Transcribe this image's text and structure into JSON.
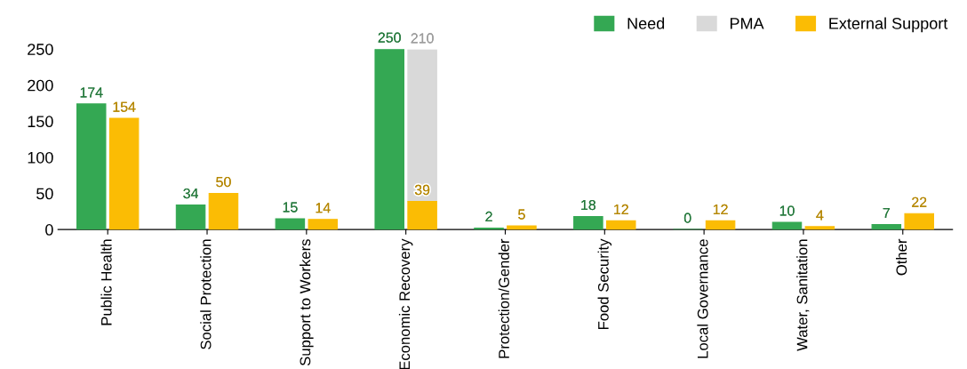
{
  "chart_data": {
    "type": "bar",
    "categories": [
      "Public Health",
      "Social Protection",
      "Support to Workers",
      "Economic Recovery",
      "Protection/Gender",
      "Food Security",
      "Local Governance",
      "Water, Sanitation",
      "Other"
    ],
    "series": [
      {
        "name": "Need",
        "color": "#34a853",
        "values": [
          174,
          34,
          15,
          250,
          2,
          18,
          0,
          10,
          7
        ]
      },
      {
        "name": "PMA",
        "color": "#d9d9d9",
        "values": [
          null,
          null,
          null,
          210,
          null,
          null,
          null,
          null,
          null
        ],
        "base": [
          null,
          null,
          null,
          39,
          null,
          null,
          null,
          null,
          null
        ]
      },
      {
        "name": "External Support",
        "color": "#fbbc04",
        "values": [
          154,
          50,
          14,
          39,
          5,
          12,
          12,
          4,
          22
        ]
      }
    ],
    "ylim": [
      0,
      250
    ],
    "yticks": [
      0,
      50,
      100,
      150,
      200,
      250
    ],
    "data_labels": true,
    "legend": "top right",
    "grid": false
  }
}
